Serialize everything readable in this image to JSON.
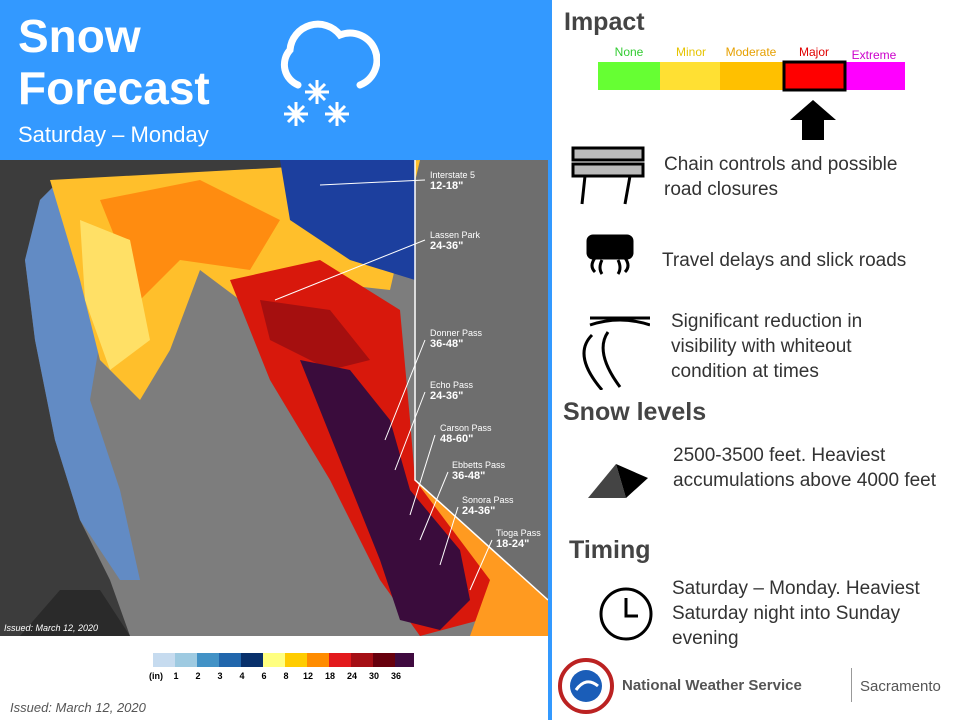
{
  "header": {
    "title_line1": "Snow",
    "title_line2": "Forecast",
    "subtitle": "Saturday – Monday"
  },
  "map": {
    "labels": [
      {
        "name": "Interstate 5",
        "amount": "12-18\""
      },
      {
        "name": "Lassen Park",
        "amount": "24-36\""
      },
      {
        "name": "Donner Pass",
        "amount": "36-48\""
      },
      {
        "name": "Echo Pass",
        "amount": "24-36\""
      },
      {
        "name": "Carson Pass",
        "amount": "48-60\""
      },
      {
        "name": "Ebbetts Pass",
        "amount": "36-48\""
      },
      {
        "name": "Sonora Pass",
        "amount": "24-36\""
      },
      {
        "name": "Tioga Pass",
        "amount": "18-24\""
      }
    ],
    "issued": "Issued: March 12, 2020"
  },
  "legend": {
    "unit": "(in)",
    "ticks": [
      1,
      2,
      3,
      4,
      6,
      8,
      12,
      18,
      24,
      30,
      36
    ]
  },
  "footer": {
    "issued": "Issued: March 12, 2020"
  },
  "impact": {
    "title": "Impact",
    "levels": [
      "None",
      "Minor",
      "Moderate",
      "Major",
      "Extreme"
    ],
    "items": [
      "Chain controls and possible road closures",
      "Travel delays and slick roads",
      "Significant reduction in visibility with whiteout condition at times"
    ]
  },
  "snow_levels": {
    "title": "Snow levels",
    "text": "2500-3500 feet. Heaviest accumulations above 4000 feet"
  },
  "timing": {
    "title": "Timing",
    "text": "Saturday – Monday. Heaviest Saturday night into Sunday evening"
  },
  "agency": {
    "name": "National Weather Service",
    "office": "Sacramento"
  }
}
